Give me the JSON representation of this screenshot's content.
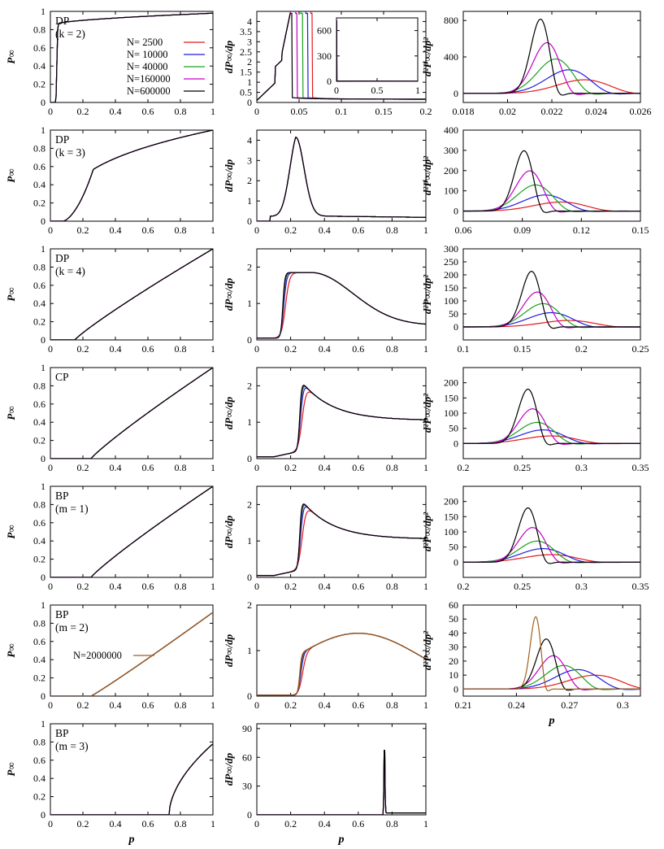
{
  "chart_data": {
    "type": "line",
    "series_colors": {
      "2500": "#e41a1c",
      "10000": "#1f1fe0",
      "40000": "#1aa31a",
      "160000": "#c400c8",
      "600000": "#000000",
      "2000000": "#a0621c"
    },
    "legend_entries": [
      {
        "label": "N=   2500",
        "color": "#e41a1c"
      },
      {
        "label": "N=  10000",
        "color": "#1f1fe0"
      },
      {
        "label": "N=  40000",
        "color": "#1aa31a"
      },
      {
        "label": "N=160000",
        "color": "#c400c8"
      },
      {
        "label": "N=600000",
        "color": "#000000"
      }
    ],
    "legend2_entry": {
      "label": "N=2000000",
      "color": "#a0621c"
    },
    "ylabels": {
      "col0": "P∞",
      "col1": "dP∞/dp",
      "col2": "d²P∞/dp²"
    },
    "xlabel": "p",
    "rows": [
      {
        "model": "DP",
        "param": "(k = 2)",
        "c0": {
          "xlim": [
            0,
            1
          ],
          "ylim": [
            0,
            1
          ],
          "xticks": [
            "0",
            "0.2",
            "0.4",
            "0.6",
            "0.8",
            "1"
          ],
          "yticks": [
            "0",
            "0.2",
            "0.4",
            "0.6",
            "0.8",
            "1"
          ],
          "pc": 0.035,
          "shape": "jump"
        },
        "c1": {
          "xlim": [
            0,
            0.2
          ],
          "ylim": [
            0,
            4.5
          ],
          "xticks": [
            "0",
            "0.05",
            "0.1",
            "0.15",
            "0.2"
          ],
          "yticks": [
            "0",
            "0.5",
            "1",
            "1.5",
            "2",
            "2.5",
            "3",
            "3.5",
            "4"
          ],
          "pc": 0.02,
          "shape": "spike"
        },
        "c2": {
          "xlim": [
            0.018,
            0.026
          ],
          "ylim": [
            -100,
            900
          ],
          "xticks": [
            "0.018",
            "0.02",
            "0.022",
            "0.024",
            "0.026"
          ],
          "yticks": [
            "0",
            "400",
            "800"
          ],
          "peaks": [
            0.0235,
            0.0228,
            0.0222,
            0.0218,
            0.0215
          ],
          "amps": [
            150,
            260,
            380,
            560,
            820
          ]
        },
        "inset": {
          "xticks": [
            "0",
            "0.5",
            "1"
          ],
          "yticks": [
            "0",
            "300",
            "600"
          ]
        }
      },
      {
        "model": "DP",
        "param": "(k = 3)",
        "c0": {
          "xlim": [
            0,
            1
          ],
          "ylim": [
            0,
            1
          ],
          "xticks": [
            "0",
            "0.2",
            "0.4",
            "0.6",
            "0.8",
            "1"
          ],
          "yticks": [
            "0",
            "0.2",
            "0.4",
            "0.6",
            "0.8",
            "1"
          ],
          "pc": 0.08,
          "shape": "sshape"
        },
        "c1": {
          "xlim": [
            0,
            1
          ],
          "ylim": [
            0,
            4.5
          ],
          "xticks": [
            "0",
            "0.2",
            "0.4",
            "0.6",
            "0.8",
            "1"
          ],
          "yticks": [
            "0",
            "1",
            "2",
            "3",
            "4"
          ],
          "pc": 0.08,
          "shape": "peak"
        },
        "c2": {
          "xlim": [
            0.06,
            0.15
          ],
          "ylim": [
            -50,
            400
          ],
          "xticks": [
            "0.06",
            "0.09",
            "0.12",
            "0.15"
          ],
          "yticks": [
            "0",
            "100",
            "200",
            "300",
            "400"
          ],
          "peaks": [
            0.11,
            0.102,
            0.097,
            0.094,
            0.091
          ],
          "amps": [
            45,
            80,
            130,
            200,
            300
          ]
        }
      },
      {
        "model": "DP",
        "param": "(k = 4)",
        "c0": {
          "xlim": [
            0,
            1
          ],
          "ylim": [
            0,
            1
          ],
          "xticks": [
            "0",
            "0.2",
            "0.4",
            "0.6",
            "0.8",
            "1"
          ],
          "yticks": [
            "0",
            "0.2",
            "0.4",
            "0.6",
            "0.8",
            "1"
          ],
          "pc": 0.15,
          "shape": "rise"
        },
        "c1": {
          "xlim": [
            0,
            1
          ],
          "ylim": [
            0,
            2.5
          ],
          "xticks": [
            "0",
            "0.2",
            "0.4",
            "0.6",
            "0.8",
            "1"
          ],
          "yticks": [
            "0",
            "1",
            "2"
          ],
          "pc": 0.15,
          "shape": "plateau"
        },
        "c2": {
          "xlim": [
            0.1,
            0.25
          ],
          "ylim": [
            -50,
            300
          ],
          "xticks": [
            "0.1",
            "0.15",
            "0.2",
            "0.25"
          ],
          "yticks": [
            "0",
            "50",
            "100",
            "150",
            "200",
            "250",
            "300"
          ],
          "peaks": [
            0.19,
            0.175,
            0.168,
            0.163,
            0.158
          ],
          "amps": [
            25,
            55,
            90,
            135,
            215
          ]
        }
      },
      {
        "model": "CP",
        "param": "",
        "c0": {
          "xlim": [
            0,
            1
          ],
          "ylim": [
            0,
            1
          ],
          "xticks": [
            "0",
            "0.2",
            "0.4",
            "0.6",
            "0.8",
            "1"
          ],
          "yticks": [
            "0",
            "0.2",
            "0.4",
            "0.6",
            "0.8",
            "1"
          ],
          "pc": 0.25,
          "shape": "rise"
        },
        "c1": {
          "xlim": [
            0,
            1
          ],
          "ylim": [
            0,
            2.5
          ],
          "xticks": [
            "0",
            "0.2",
            "0.4",
            "0.6",
            "0.8",
            "1"
          ],
          "yticks": [
            "0",
            "1",
            "2"
          ],
          "pc": 0.25,
          "shape": "decay"
        },
        "c2": {
          "xlim": [
            0.2,
            0.35
          ],
          "ylim": [
            -50,
            250
          ],
          "xticks": [
            "0.2",
            "0.25",
            "0.3",
            "0.35"
          ],
          "yticks": [
            "0",
            "50",
            "100",
            "150",
            "200"
          ],
          "peaks": [
            0.275,
            0.268,
            0.263,
            0.259,
            0.255
          ],
          "amps": [
            25,
            45,
            70,
            115,
            180
          ]
        }
      },
      {
        "model": "BP",
        "param": "(m = 1)",
        "c0": {
          "xlim": [
            0,
            1
          ],
          "ylim": [
            0,
            1
          ],
          "xticks": [
            "0",
            "0.2",
            "0.4",
            "0.6",
            "0.8",
            "1"
          ],
          "yticks": [
            "0",
            "0.2",
            "0.4",
            "0.6",
            "0.8",
            "1"
          ],
          "pc": 0.25,
          "shape": "rise"
        },
        "c1": {
          "xlim": [
            0,
            1
          ],
          "ylim": [
            0,
            2.5
          ],
          "xticks": [
            "0",
            "0.2",
            "0.4",
            "0.6",
            "0.8",
            "1"
          ],
          "yticks": [
            "0",
            "1",
            "2"
          ],
          "pc": 0.25,
          "shape": "decay"
        },
        "c2": {
          "xlim": [
            0.2,
            0.35
          ],
          "ylim": [
            -50,
            250
          ],
          "xticks": [
            "0.2",
            "0.25",
            "0.3",
            "0.35"
          ],
          "yticks": [
            "0",
            "50",
            "100",
            "150",
            "200"
          ],
          "peaks": [
            0.275,
            0.268,
            0.263,
            0.259,
            0.255
          ],
          "amps": [
            25,
            45,
            70,
            115,
            180
          ]
        }
      },
      {
        "model": "BP",
        "param": "(m = 2)",
        "c0": {
          "xlim": [
            0,
            1
          ],
          "ylim": [
            0,
            1
          ],
          "xticks": [
            "0",
            "0.2",
            "0.4",
            "0.6",
            "0.8",
            "1"
          ],
          "yticks": [
            "0",
            "0.2",
            "0.4",
            "0.6",
            "0.8",
            "1"
          ],
          "pc": 0.25,
          "shape": "rise2"
        },
        "c1": {
          "xlim": [
            0,
            1
          ],
          "ylim": [
            0,
            2
          ],
          "xticks": [
            "0",
            "0.2",
            "0.4",
            "0.6",
            "0.8",
            "1"
          ],
          "yticks": [
            "0",
            "1",
            "2"
          ],
          "pc": 0.25,
          "shape": "hump"
        },
        "c2": {
          "xlim": [
            0.21,
            0.31
          ],
          "ylim": [
            -5,
            60
          ],
          "xticks": [
            "0.21",
            "0.24",
            "0.27",
            "0.3"
          ],
          "yticks": [
            "0",
            "10",
            "20",
            "30",
            "40",
            "50",
            "60"
          ],
          "peaks": [
            0.285,
            0.275,
            0.267,
            0.261,
            0.257,
            0.251
          ],
          "amps": [
            10,
            14,
            17,
            24,
            36,
            52
          ]
        }
      },
      {
        "model": "BP",
        "param": "(m = 3)",
        "c0": {
          "xlim": [
            0,
            1
          ],
          "ylim": [
            0,
            1
          ],
          "xticks": [
            "0",
            "0.2",
            "0.4",
            "0.6",
            "0.8",
            "1"
          ],
          "yticks": [
            "0",
            "0.2",
            "0.4",
            "0.6",
            "0.8",
            "1"
          ],
          "pc": 0.73,
          "shape": "late"
        },
        "c1": {
          "xlim": [
            0,
            1
          ],
          "ylim": [
            0,
            95
          ],
          "xticks": [
            "0",
            "0.2",
            "0.4",
            "0.6",
            "0.8",
            "1"
          ],
          "yticks": [
            "0",
            "30",
            "60",
            "90"
          ],
          "pc": 0.75,
          "shape": "latespike"
        }
      }
    ]
  }
}
